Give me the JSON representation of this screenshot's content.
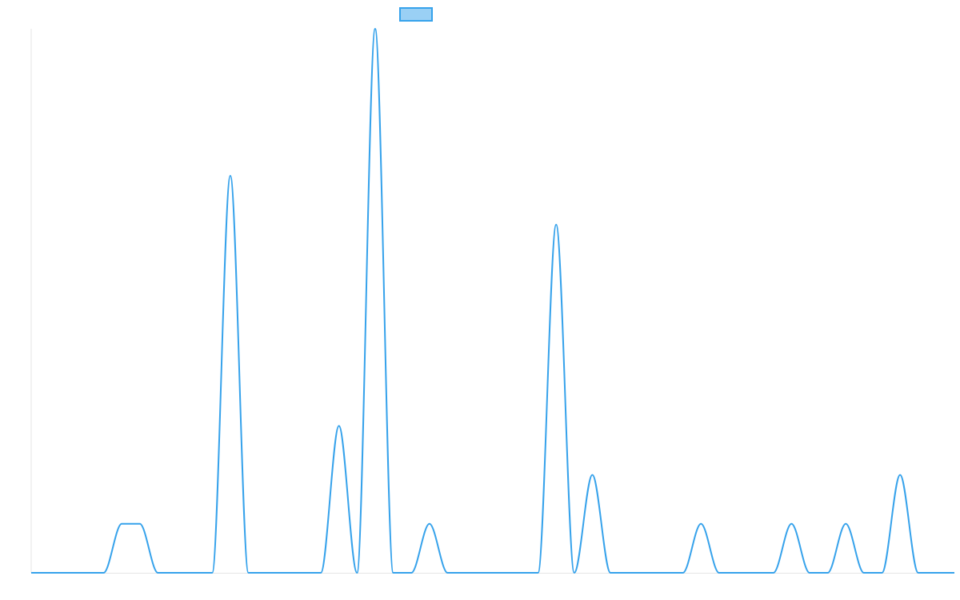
{
  "chart_data": {
    "type": "line",
    "title": "",
    "xlabel": "",
    "ylabel": "",
    "grid": false,
    "legend_position": "top-center",
    "x": [
      0,
      1,
      2,
      3,
      4,
      5,
      6,
      7,
      8,
      9,
      10,
      11,
      12,
      13,
      14,
      15,
      16,
      17,
      18,
      19,
      20,
      21,
      22,
      23,
      24,
      25,
      26,
      27,
      28,
      29,
      30,
      31,
      32,
      33,
      34,
      35,
      36,
      37,
      38,
      39,
      40,
      41,
      42,
      43,
      44,
      45,
      46,
      47,
      48,
      49,
      50,
      51
    ],
    "xlim": [
      0,
      51
    ],
    "ylim": [
      0,
      1
    ],
    "series": [
      {
        "name": "",
        "color": "#36a2eb",
        "fill": "#9ad0f5",
        "values": [
          0,
          0,
          0,
          0,
          0,
          0.09,
          0.09,
          0,
          0,
          0,
          0,
          0.73,
          0,
          0,
          0,
          0,
          0,
          0.27,
          0,
          1,
          0,
          0,
          0.09,
          0,
          0,
          0,
          0,
          0,
          0,
          0.64,
          0,
          0.18,
          0,
          0,
          0,
          0,
          0,
          0.09,
          0,
          0,
          0,
          0,
          0.09,
          0,
          0,
          0.09,
          0,
          0,
          0.18,
          0,
          0,
          0
        ]
      }
    ]
  }
}
